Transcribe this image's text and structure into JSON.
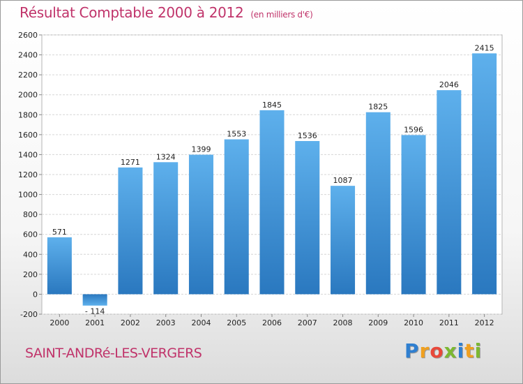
{
  "chart_data": {
    "type": "bar",
    "title": "Résultat Comptable 2000 à 2012",
    "subtitle": "(en milliers d'€)",
    "categories": [
      "2000",
      "2001",
      "2002",
      "2003",
      "2004",
      "2005",
      "2006",
      "2007",
      "2008",
      "2009",
      "2010",
      "2011",
      "2012"
    ],
    "values": [
      571,
      -114,
      1271,
      1324,
      1399,
      1553,
      1845,
      1536,
      1087,
      1825,
      1596,
      2046,
      2415
    ],
    "value_labels": [
      "571",
      "- 114",
      "1271",
      "1324",
      "1399",
      "1553",
      "1845",
      "1536",
      "1087",
      "1825",
      "1596",
      "2046",
      "2415"
    ],
    "ylim": [
      -200,
      2600
    ],
    "yticks": [
      -200,
      0,
      200,
      400,
      600,
      800,
      1000,
      1200,
      1400,
      1600,
      1800,
      2000,
      2200,
      2400,
      2600
    ],
    "grid": true,
    "bar_color": "#3f8fd4",
    "xlabel": "",
    "ylabel": ""
  },
  "footer": {
    "town": "SAINT-ANDRé-LES-VERGERS",
    "logo_letters": [
      {
        "ch": "P",
        "color": "#2f7fd0"
      },
      {
        "ch": "r",
        "color": "#f0a020"
      },
      {
        "ch": "o",
        "color": "#e8483a"
      },
      {
        "ch": "x",
        "color": "#7cb832"
      },
      {
        "ch": "i",
        "color": "#2f7fd0"
      },
      {
        "ch": "t",
        "color": "#f0a020"
      },
      {
        "ch": "i",
        "color": "#7cb832"
      }
    ]
  }
}
